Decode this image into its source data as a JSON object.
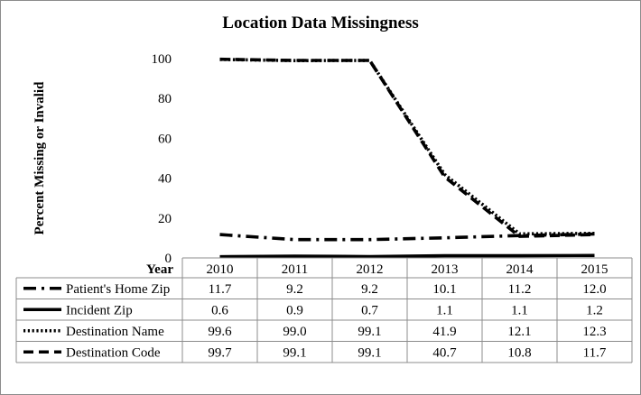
{
  "chart_data": {
    "type": "line",
    "title": "Location Data Missingness",
    "ylabel": "Percent Missing or Invalid",
    "xlabel": "Year",
    "categories": [
      "2010",
      "2011",
      "2012",
      "2013",
      "2014",
      "2015"
    ],
    "ylim": [
      0,
      100
    ],
    "yticks": [
      0,
      20,
      40,
      60,
      80,
      100
    ],
    "grid": false,
    "legend": "data-table",
    "series": [
      {
        "name": "Patient's Home Zip",
        "values": [
          11.7,
          9.2,
          9.2,
          10.1,
          11.2,
          12.0
        ],
        "labels": [
          "11.7",
          "9.2",
          "9.2",
          "10.1",
          "11.2",
          "12.0"
        ],
        "style": "dash-dot"
      },
      {
        "name": "Incident Zip",
        "values": [
          0.6,
          0.9,
          0.7,
          1.1,
          1.1,
          1.2
        ],
        "labels": [
          "0.6",
          "0.9",
          "0.7",
          "1.1",
          "1.1",
          "1.2"
        ],
        "style": "solid"
      },
      {
        "name": "Destination Name",
        "values": [
          99.6,
          99.0,
          99.1,
          41.9,
          12.1,
          12.3
        ],
        "labels": [
          "99.6",
          "99.0",
          "99.1",
          "41.9",
          "12.1",
          "12.3"
        ],
        "style": "dotted"
      },
      {
        "name": "Destination Code",
        "values": [
          99.7,
          99.1,
          99.1,
          40.7,
          10.8,
          11.7
        ],
        "labels": [
          "99.7",
          "99.1",
          "99.1",
          "40.7",
          "10.8",
          "11.7"
        ],
        "style": "dashed"
      }
    ]
  }
}
